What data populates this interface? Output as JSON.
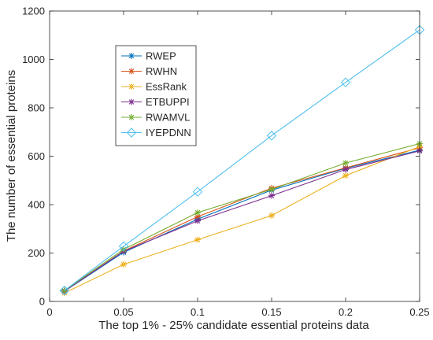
{
  "chart_data": {
    "type": "line",
    "title": "",
    "xlabel": "The top 1% - 25% candidate essential proteins data",
    "ylabel": "The number of essential proteins",
    "xlim": [
      0,
      0.25
    ],
    "ylim": [
      0,
      1200
    ],
    "xticks": [
      0,
      0.05,
      0.1,
      0.15,
      0.2,
      0.25
    ],
    "xtick_labels": [
      "0",
      "0.05",
      "0.1",
      "0.15",
      "0.2",
      "0.25"
    ],
    "yticks": [
      0,
      200,
      400,
      600,
      800,
      1000,
      1200
    ],
    "ytick_labels": [
      "0",
      "200",
      "400",
      "600",
      "800",
      "1000",
      "1200"
    ],
    "grid": false,
    "legend_position": "upper-left",
    "x": [
      0.01,
      0.05,
      0.1,
      0.15,
      0.2,
      0.25
    ],
    "series": [
      {
        "name": "RWEP",
        "color": "#0072BD",
        "marker": "asterisk",
        "values": [
          42,
          203,
          340,
          460,
          550,
          625
        ]
      },
      {
        "name": "RWHN",
        "color": "#D95319",
        "marker": "asterisk",
        "values": [
          44,
          208,
          350,
          468,
          552,
          635
        ]
      },
      {
        "name": "EssRank",
        "color": "#EDB120",
        "marker": "asterisk",
        "values": [
          35,
          153,
          255,
          355,
          520,
          640
        ]
      },
      {
        "name": "ETBUPPI",
        "color": "#7E2F8E",
        "marker": "asterisk",
        "values": [
          43,
          207,
          333,
          437,
          545,
          622
        ]
      },
      {
        "name": "RWAMVL",
        "color": "#77AC30",
        "marker": "asterisk",
        "values": [
          45,
          215,
          367,
          463,
          572,
          652
        ]
      },
      {
        "name": "IYEPDNN",
        "color": "#4DBEEE",
        "marker": "diamond",
        "values": [
          45,
          228,
          453,
          685,
          905,
          1122
        ]
      }
    ]
  }
}
